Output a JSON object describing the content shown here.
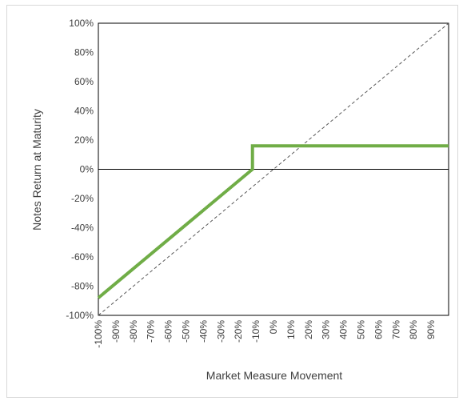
{
  "chart_data": {
    "type": "line",
    "title": "",
    "xlabel": "Market Measure Movement",
    "ylabel": "Notes Return at Maturity",
    "xlim": [
      -100,
      100
    ],
    "ylim": [
      -100,
      100
    ],
    "x_ticks": [
      "-100%",
      "-90%",
      "-80%",
      "-70%",
      "-60%",
      "-50%",
      "-40%",
      "-30%",
      "-20%",
      "-10%",
      "0%",
      "10%",
      "20%",
      "30%",
      "40%",
      "50%",
      "60%",
      "70%",
      "80%",
      "90%"
    ],
    "y_ticks": [
      "100%",
      "80%",
      "60%",
      "40%",
      "20%",
      "0%",
      "-20%",
      "-40%",
      "-60%",
      "-80%",
      "-100%"
    ],
    "grid": false,
    "legend": "none",
    "series": [
      {
        "color": "#70ad47",
        "style": "solid",
        "points": [
          [
            -100,
            -88
          ],
          [
            -12,
            0
          ],
          [
            -12,
            16
          ],
          [
            100,
            16
          ]
        ]
      },
      {
        "color": "#595959",
        "style": "dashed",
        "points": [
          [
            -100,
            -100
          ],
          [
            100,
            100
          ]
        ]
      }
    ],
    "reference_lines": [
      {
        "axis": "y",
        "value": 0,
        "color": "#000000"
      }
    ]
  }
}
